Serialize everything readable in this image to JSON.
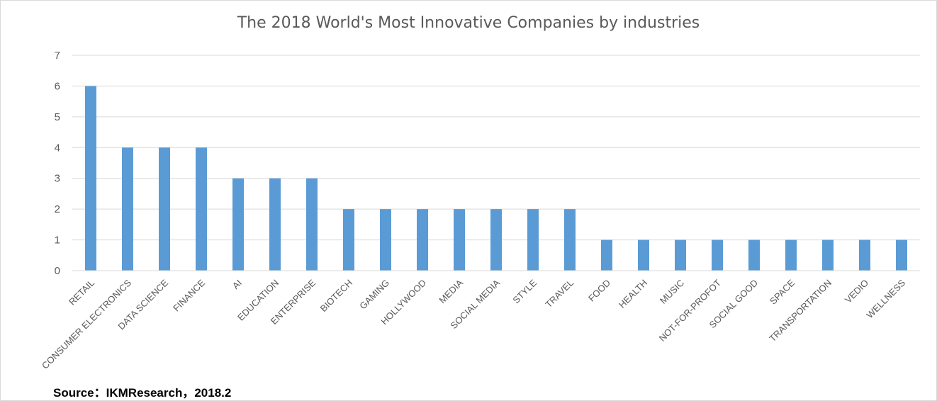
{
  "chart_data": {
    "type": "bar",
    "title": "The 2018 World's Most Innovative Companies by industries",
    "xlabel": "",
    "ylabel": "",
    "ylim": [
      0,
      7
    ],
    "yticks": [
      0,
      1,
      2,
      3,
      4,
      5,
      6,
      7
    ],
    "grid": true,
    "legend": "none",
    "bar_color": "#5b9bd5",
    "categories": [
      "RETAIL",
      "CONSUMER ELECTRONICS",
      "DATA SCIENCE",
      "FINANCE",
      "AI",
      "EDUCATION",
      "ENTERPRISE",
      "BIOTECH",
      "GAMING",
      "HOLLYWOOD",
      "MEDIA",
      "SOCIAL MEDIA",
      "STYLE",
      "TRAVEL",
      "FOOD",
      "HEALTH",
      "MUSIC",
      "NOT-FOR-PROFOT",
      "SOCIAL GOOD",
      "SPACE",
      "TRANSPORTATION",
      "VEDIO",
      "WELLNESS"
    ],
    "values": [
      6,
      4,
      4,
      4,
      3,
      3,
      3,
      2,
      2,
      2,
      2,
      2,
      2,
      2,
      1,
      1,
      1,
      1,
      1,
      1,
      1,
      1,
      1
    ]
  },
  "source": "Source：IKMResearch，2018.2"
}
